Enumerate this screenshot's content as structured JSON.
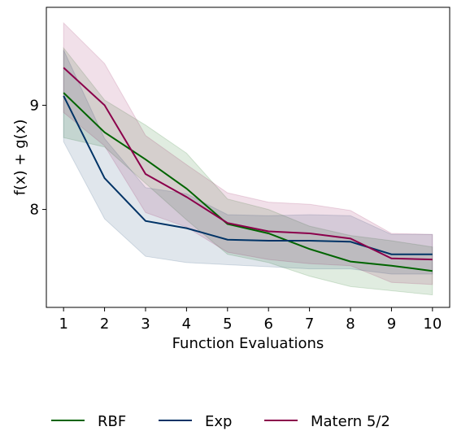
{
  "chart_data": {
    "type": "line",
    "xlabel": "Function Evaluations",
    "ylabel": "f(x) + g(x)",
    "x": [
      1,
      2,
      3,
      4,
      5,
      6,
      7,
      8,
      9,
      10
    ],
    "xlim": [
      0.58,
      10.42
    ],
    "ylim": [
      7.06,
      9.94
    ],
    "xticks": [
      1,
      2,
      3,
      4,
      5,
      6,
      7,
      8,
      9,
      10
    ],
    "yticks": [
      8,
      9
    ],
    "grid": false,
    "legend_position": "bottom",
    "series": [
      {
        "name": "RBF",
        "color": "#006400",
        "values": [
          9.12,
          8.74,
          8.48,
          8.2,
          7.86,
          7.77,
          7.62,
          7.5,
          7.46,
          7.41
        ],
        "lower": [
          8.69,
          8.6,
          8.25,
          7.9,
          7.57,
          7.49,
          7.36,
          7.26,
          7.22,
          7.18
        ],
        "upper": [
          9.55,
          9.05,
          8.81,
          8.54,
          8.1,
          8.0,
          7.84,
          7.75,
          7.7,
          7.64
        ]
      },
      {
        "name": "Exp",
        "color": "#003366",
        "values": [
          9.09,
          8.3,
          7.89,
          7.82,
          7.71,
          7.7,
          7.7,
          7.69,
          7.57,
          7.57
        ],
        "lower": [
          8.65,
          7.91,
          7.55,
          7.49,
          7.47,
          7.45,
          7.43,
          7.43,
          7.38,
          7.38
        ],
        "upper": [
          9.53,
          8.68,
          8.21,
          8.15,
          7.95,
          7.94,
          7.95,
          7.94,
          7.76,
          7.76
        ]
      },
      {
        "name": "Matern 5/2",
        "color": "#8B004B",
        "values": [
          9.36,
          9.0,
          8.34,
          8.12,
          7.87,
          7.79,
          7.77,
          7.72,
          7.53,
          7.52
        ],
        "lower": [
          8.93,
          8.61,
          7.97,
          7.83,
          7.59,
          7.52,
          7.48,
          7.46,
          7.3,
          7.28
        ],
        "upper": [
          9.79,
          9.4,
          8.71,
          8.43,
          8.16,
          8.07,
          8.05,
          7.99,
          7.77,
          7.76
        ]
      }
    ]
  }
}
